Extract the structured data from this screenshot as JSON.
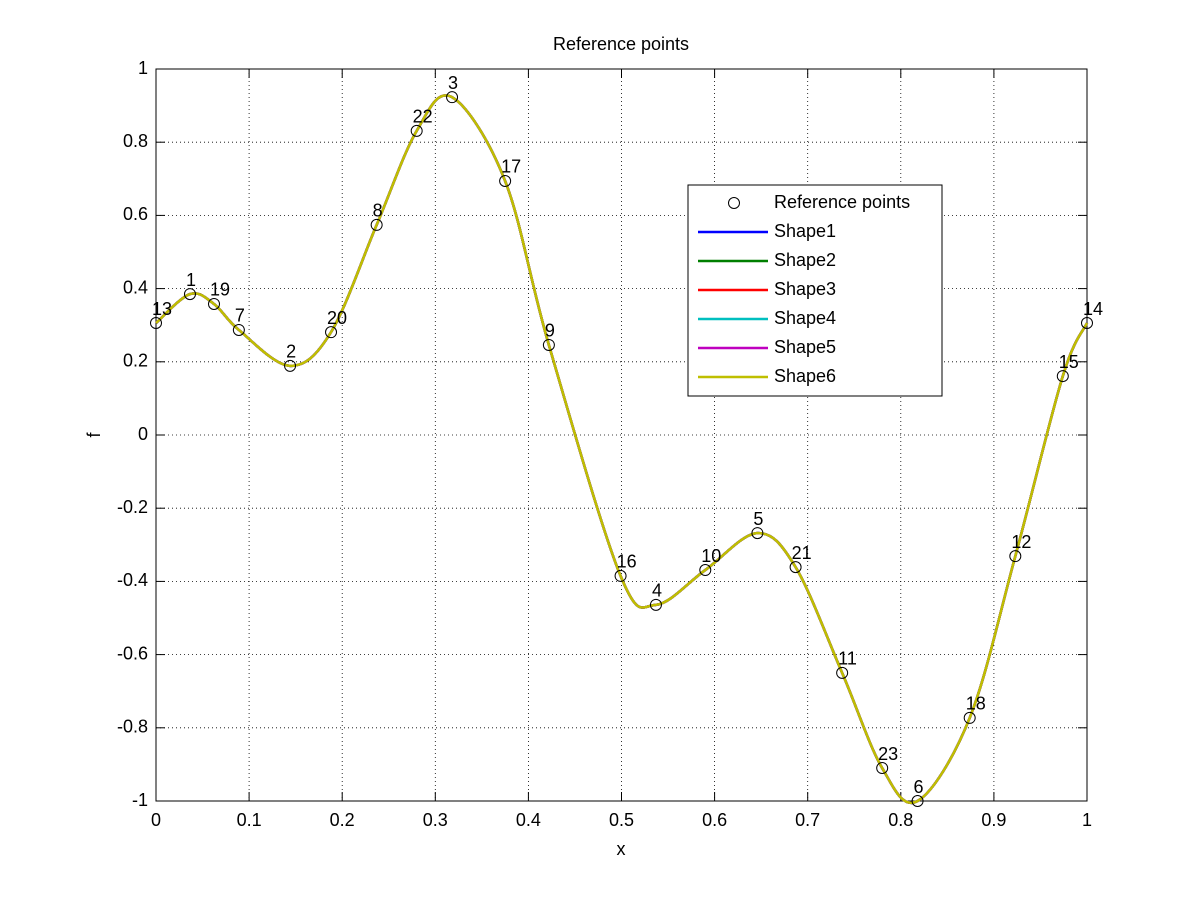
{
  "chart_data": {
    "type": "line",
    "title": "Reference points",
    "xlabel": "x",
    "ylabel": "f",
    "x": [
      0,
      0.0365,
      0.0623,
      0.089,
      0.144,
      0.188,
      0.237,
      0.28,
      0.318,
      0.375,
      0.422,
      0.499,
      0.537,
      0.59,
      0.646,
      0.687,
      0.737,
      0.78,
      0.818,
      0.874,
      0.923,
      0.974,
      1
    ],
    "series": [
      {
        "name": "Reference points",
        "style": "markers",
        "color": "#000000",
        "values": [
          0.306,
          0.385,
          0.358,
          0.287,
          0.189,
          0.281,
          0.574,
          0.831,
          0.923,
          0.694,
          0.246,
          -0.385,
          -0.464,
          -0.369,
          -0.268,
          -0.361,
          -0.65,
          -0.91,
          -1.0,
          -0.773,
          -0.331,
          0.161,
          0.306
        ],
        "point_labels": [
          "13",
          "1",
          "19",
          "7",
          "2",
          "20",
          "8",
          "22",
          "3",
          "17",
          "9",
          "16",
          "4",
          "10",
          "5",
          "21",
          "11",
          "23",
          "6",
          "18",
          "12",
          "15",
          "14"
        ]
      },
      {
        "name": "Shape1",
        "style": "line",
        "color": "#0000ff",
        "values": [
          0.306,
          0.385,
          0.358,
          0.287,
          0.189,
          0.281,
          0.574,
          0.831,
          0.923,
          0.694,
          0.246,
          -0.385,
          -0.464,
          -0.369,
          -0.268,
          -0.361,
          -0.65,
          -0.91,
          -1.0,
          -0.773,
          -0.331,
          0.161,
          0.306
        ]
      },
      {
        "name": "Shape2",
        "style": "line",
        "color": "#007f00",
        "values": [
          0.306,
          0.385,
          0.358,
          0.287,
          0.189,
          0.281,
          0.574,
          0.831,
          0.923,
          0.694,
          0.246,
          -0.385,
          -0.464,
          -0.369,
          -0.268,
          -0.361,
          -0.65,
          -0.91,
          -1.0,
          -0.773,
          -0.331,
          0.161,
          0.306
        ]
      },
      {
        "name": "Shape3",
        "style": "line",
        "color": "#ff0000",
        "values": [
          0.306,
          0.385,
          0.358,
          0.287,
          0.189,
          0.281,
          0.574,
          0.831,
          0.923,
          0.694,
          0.246,
          -0.385,
          -0.464,
          -0.369,
          -0.268,
          -0.361,
          -0.65,
          -0.91,
          -1.0,
          -0.773,
          -0.331,
          0.161,
          0.306
        ]
      },
      {
        "name": "Shape4",
        "style": "line",
        "color": "#00bfbf",
        "values": [
          0.306,
          0.385,
          0.358,
          0.287,
          0.189,
          0.281,
          0.574,
          0.831,
          0.923,
          0.694,
          0.246,
          -0.385,
          -0.464,
          -0.369,
          -0.268,
          -0.361,
          -0.65,
          -0.91,
          -1.0,
          -0.773,
          -0.331,
          0.161,
          0.306
        ]
      },
      {
        "name": "Shape5",
        "style": "line",
        "color": "#bf00bf",
        "values": [
          0.306,
          0.385,
          0.358,
          0.287,
          0.189,
          0.281,
          0.574,
          0.831,
          0.923,
          0.694,
          0.246,
          -0.385,
          -0.464,
          -0.369,
          -0.268,
          -0.361,
          -0.65,
          -0.91,
          -1.0,
          -0.773,
          -0.331,
          0.161,
          0.306
        ]
      },
      {
        "name": "Shape6",
        "style": "line",
        "color": "#bfbf00",
        "values": [
          0.306,
          0.385,
          0.358,
          0.287,
          0.189,
          0.281,
          0.574,
          0.831,
          0.923,
          0.694,
          0.246,
          -0.385,
          -0.464,
          -0.369,
          -0.268,
          -0.361,
          -0.65,
          -0.91,
          -1.0,
          -0.773,
          -0.331,
          0.161,
          0.306
        ]
      }
    ],
    "xlim": [
      0,
      1
    ],
    "ylim": [
      -1,
      1
    ],
    "xticks": [
      0,
      0.1,
      0.2,
      0.3,
      0.4,
      0.5,
      0.6,
      0.7,
      0.8,
      0.9,
      1
    ],
    "yticks": [
      -1,
      -0.8,
      -0.6,
      -0.4,
      -0.2,
      0,
      0.2,
      0.4,
      0.6,
      0.8,
      1
    ],
    "grid": true,
    "legend": true
  }
}
